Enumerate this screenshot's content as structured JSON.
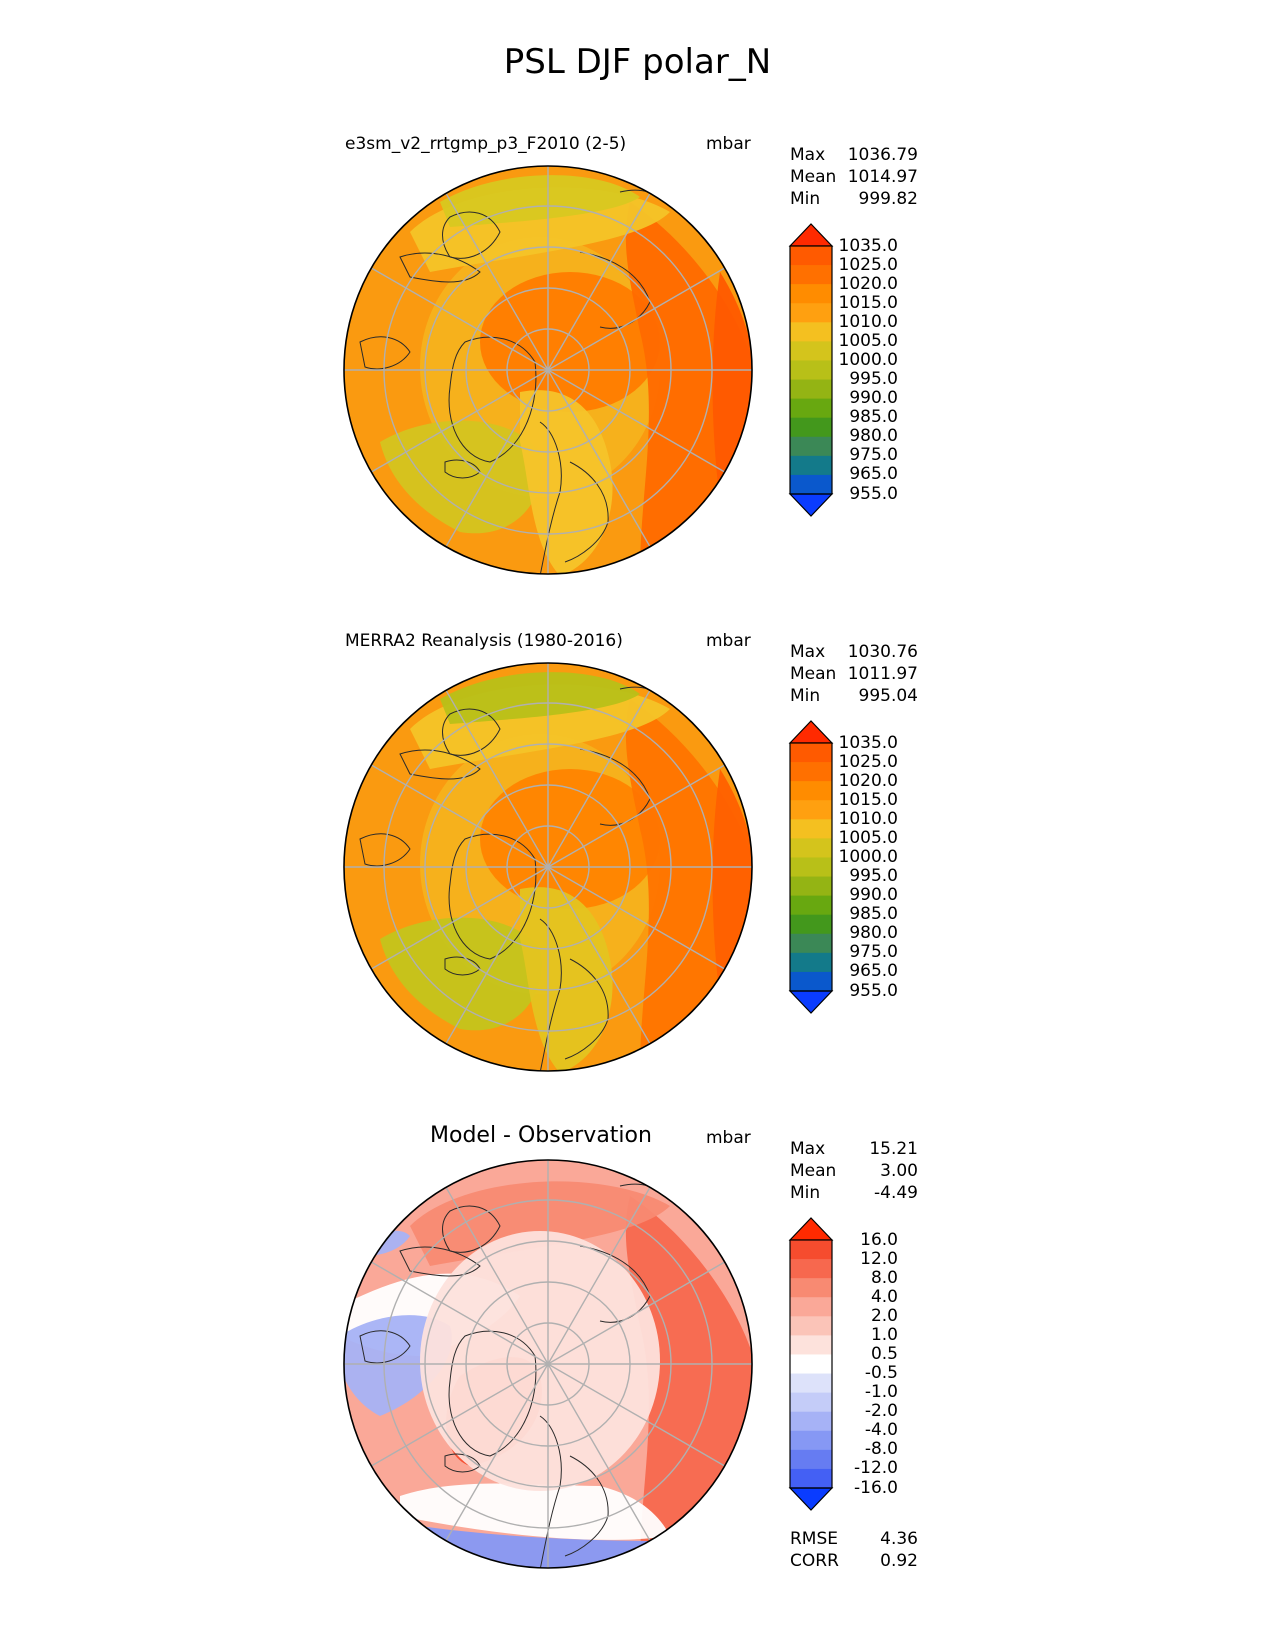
{
  "title": "PSL DJF polar_N",
  "panels": [
    {
      "title": "e3sm_v2_rrtgmp_p3_F2010 (2-5)",
      "units": "mbar",
      "stats": [
        {
          "label": "Max",
          "value": "1036.79"
        },
        {
          "label": "Mean",
          "value": "1014.97"
        },
        {
          "label": "Min",
          "value": "999.82"
        }
      ],
      "colorbar": {
        "ticks": [
          "1035.0",
          "1025.0",
          "1020.0",
          "1015.0",
          "1010.0",
          "1005.0",
          "1000.0",
          "995.0",
          "990.0",
          "985.0",
          "980.0",
          "975.0",
          "965.0",
          "955.0"
        ],
        "colors": [
          "#ff2a00",
          "#ff5a00",
          "#ff7000",
          "#ff8c00",
          "#ffa010",
          "#f4c020",
          "#d4c41c",
          "#b8c018",
          "#94b414",
          "#68a810",
          "#43981c",
          "#3b8856",
          "#137a8a",
          "#0a58cc",
          "#0a3cff"
        ]
      },
      "map": {
        "fill": "#fa9a10",
        "regions": [
          {
            "color": "#f5b21e",
            "shape": "ring-inner"
          },
          {
            "color": "#ff7c00",
            "shape": "center"
          },
          {
            "color": "#ff6a00",
            "shape": "right"
          },
          {
            "color": "#f4c428",
            "shape": "top"
          },
          {
            "color": "#d8c820",
            "shape": "top-cap"
          },
          {
            "color": "#d4c420",
            "shape": "lower-left"
          },
          {
            "color": "#f6c42a",
            "shape": "lower-mid"
          },
          {
            "color": "#ff5a00",
            "shape": "right-edge"
          }
        ]
      }
    },
    {
      "title": "MERRA2 Reanalysis (1980-2016)",
      "units": "mbar",
      "stats": [
        {
          "label": "Max",
          "value": "1030.76"
        },
        {
          "label": "Mean",
          "value": "1011.97"
        },
        {
          "label": "Min",
          "value": "995.04"
        }
      ],
      "colorbar": {
        "ticks": [
          "1035.0",
          "1025.0",
          "1020.0",
          "1015.0",
          "1010.0",
          "1005.0",
          "1000.0",
          "995.0",
          "990.0",
          "985.0",
          "980.0",
          "975.0",
          "965.0",
          "955.0"
        ],
        "colors": [
          "#ff2a00",
          "#ff5a00",
          "#ff7000",
          "#ff8c00",
          "#ffa010",
          "#f4c020",
          "#d4c41c",
          "#b8c018",
          "#94b414",
          "#68a810",
          "#43981c",
          "#3b8856",
          "#137a8a",
          "#0a58cc",
          "#0a3cff"
        ]
      },
      "map": {
        "fill": "#fa9a10",
        "regions": [
          {
            "color": "#f5b21e",
            "shape": "ring-inner"
          },
          {
            "color": "#ff8400",
            "shape": "center"
          },
          {
            "color": "#ff7400",
            "shape": "right"
          },
          {
            "color": "#f4c428",
            "shape": "top"
          },
          {
            "color": "#b8c018",
            "shape": "top-cap"
          },
          {
            "color": "#c4c41c",
            "shape": "lower-left"
          },
          {
            "color": "#e4c420",
            "shape": "lower-mid"
          },
          {
            "color": "#ff6000",
            "shape": "right-edge"
          }
        ]
      }
    },
    {
      "title": "Model - Observation",
      "units": "mbar",
      "stats": [
        {
          "label": "Max",
          "value": "15.21"
        },
        {
          "label": "Mean",
          "value": "3.00"
        },
        {
          "label": "Min",
          "value": "-4.49"
        }
      ],
      "colorbar": {
        "ticks": [
          "16.0",
          "12.0",
          "8.0",
          "4.0",
          "2.0",
          "1.0",
          "0.5",
          "-0.5",
          "-1.0",
          "-2.0",
          "-4.0",
          "-8.0",
          "-12.0",
          "-16.0"
        ],
        "colors": [
          "#ff2a00",
          "#f64c2e",
          "#f7684e",
          "#f88a72",
          "#faa898",
          "#fbc4b8",
          "#fde2dc",
          "#ffffff",
          "#dde2fa",
          "#c4ccf8",
          "#a6b2f6",
          "#8698f4",
          "#667cf2",
          "#4460f4",
          "#0a3cff"
        ]
      },
      "map": {
        "fill": "#faa898",
        "regions": [
          {
            "color": "#f7684e",
            "shape": "right"
          },
          {
            "color": "#f88a72",
            "shape": "top"
          },
          {
            "color": "#f64c2e",
            "shape": "greenland"
          },
          {
            "color": "#ffffff",
            "shape": "white-band"
          },
          {
            "color": "#a6b2f6",
            "shape": "blue-left"
          },
          {
            "color": "#8698f4",
            "shape": "blue-bottom"
          },
          {
            "color": "#fde2dc",
            "shape": "ring-inner"
          }
        ]
      },
      "extra_stats": [
        {
          "label": "RMSE",
          "value": "4.36"
        },
        {
          "label": "CORR",
          "value": "0.92"
        }
      ]
    }
  ]
}
